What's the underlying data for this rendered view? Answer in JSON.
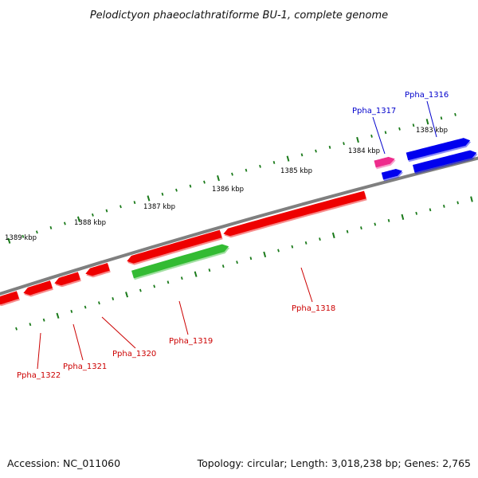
{
  "title": "Pelodictyon phaeoclathratiforme BU-1, complete genome",
  "footer": {
    "accession": "Accession: NC_011060",
    "topology": "Topology: circular; Length: 3,018,238 bp; Genes: 2,765"
  },
  "scale_labels": [
    "1383 kbp",
    "1384 kbp",
    "1385 kbp",
    "1386 kbp",
    "1387 kbp",
    "1388 kbp",
    "1389 kbp"
  ],
  "gene_labels": [
    {
      "text": "Ppha_1316",
      "color": "#0000cc"
    },
    {
      "text": "Ppha_1317",
      "color": "#0000cc"
    },
    {
      "text": "Ppha_1318",
      "color": "#cc0000"
    },
    {
      "text": "Ppha_1319",
      "color": "#cc0000"
    },
    {
      "text": "Ppha_1320",
      "color": "#cc0000"
    },
    {
      "text": "Ppha_1321",
      "color": "#cc0000"
    },
    {
      "text": "Ppha_1322",
      "color": "#cc0000"
    }
  ],
  "colors": {
    "backbone": "#7f7f7f",
    "tick": "#1a7a1a",
    "forward_gene": "#0000ee",
    "pseudo_gene": "#ee2c8c",
    "reverse_gene": "#ee0000",
    "rna_gene": "#33bb33"
  }
}
